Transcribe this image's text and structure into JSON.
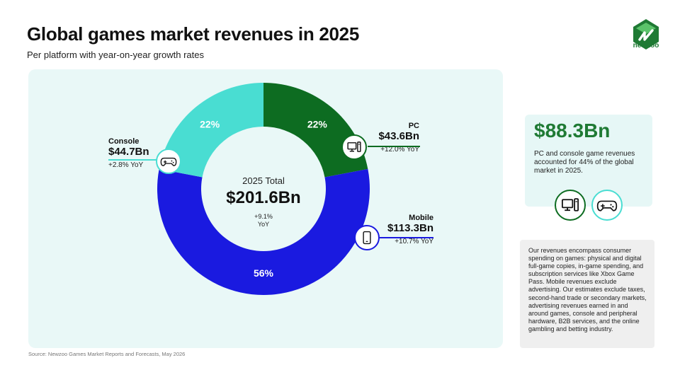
{
  "header": {
    "title": "Global games market revenues in 2025",
    "subtitle": "Per platform with year-on-year growth rates"
  },
  "brand": {
    "name": "newzoo",
    "logo_icon": "newzoo-logo-icon",
    "color": "#1f7a34"
  },
  "chart_data": {
    "type": "pie",
    "donut": true,
    "categories": [
      "PC",
      "Mobile",
      "Console"
    ],
    "values": [
      22,
      56,
      22
    ],
    "slice_labels": [
      "22%",
      "56%",
      "22%"
    ],
    "colors": [
      "#0d6c21",
      "#1a1ae0",
      "#49ddd2"
    ],
    "revenues": [
      "$43.6Bn",
      "$113.3Bn",
      "$44.7Bn"
    ],
    "growth": [
      "+12.0% YoY",
      "+10.7% YoY",
      "+2.8% YoY"
    ],
    "icons": [
      "pc-icon",
      "mobile-icon",
      "gamepad-icon"
    ],
    "center": {
      "label": "2025 Total",
      "value": "$201.6Bn",
      "growth_line1": "+9.1%",
      "growth_line2": "YoY"
    }
  },
  "callouts": {
    "pc": {
      "name": "PC",
      "value": "$43.6Bn",
      "growth": "+12.0% YoY"
    },
    "mobile": {
      "name": "Mobile",
      "value": "$113.3Bn",
      "growth": "+10.7% YoY"
    },
    "console": {
      "name": "Console",
      "value": "$44.7Bn",
      "growth": "+2.8% YoY"
    }
  },
  "highlight": {
    "value": "$88.3Bn",
    "text": "PC and console game revenues accounted for 44% of the global market in 2025.",
    "icons": [
      "pc-icon",
      "gamepad-icon"
    ]
  },
  "note": {
    "text": "Our revenues encompass consumer spending on games: physical and digital full-game copies, in-game spending, and subscription services like Xbox Game Pass. Mobile revenues exclude advertising. Our estimates exclude taxes, second-hand trade or secondary markets, advertising revenues earned in and around games, console and peripheral hardware, B2B services, and the online gambling and betting industry."
  },
  "source": "Source: Newzoo Games Market Reports and Forecasts, May 2026"
}
